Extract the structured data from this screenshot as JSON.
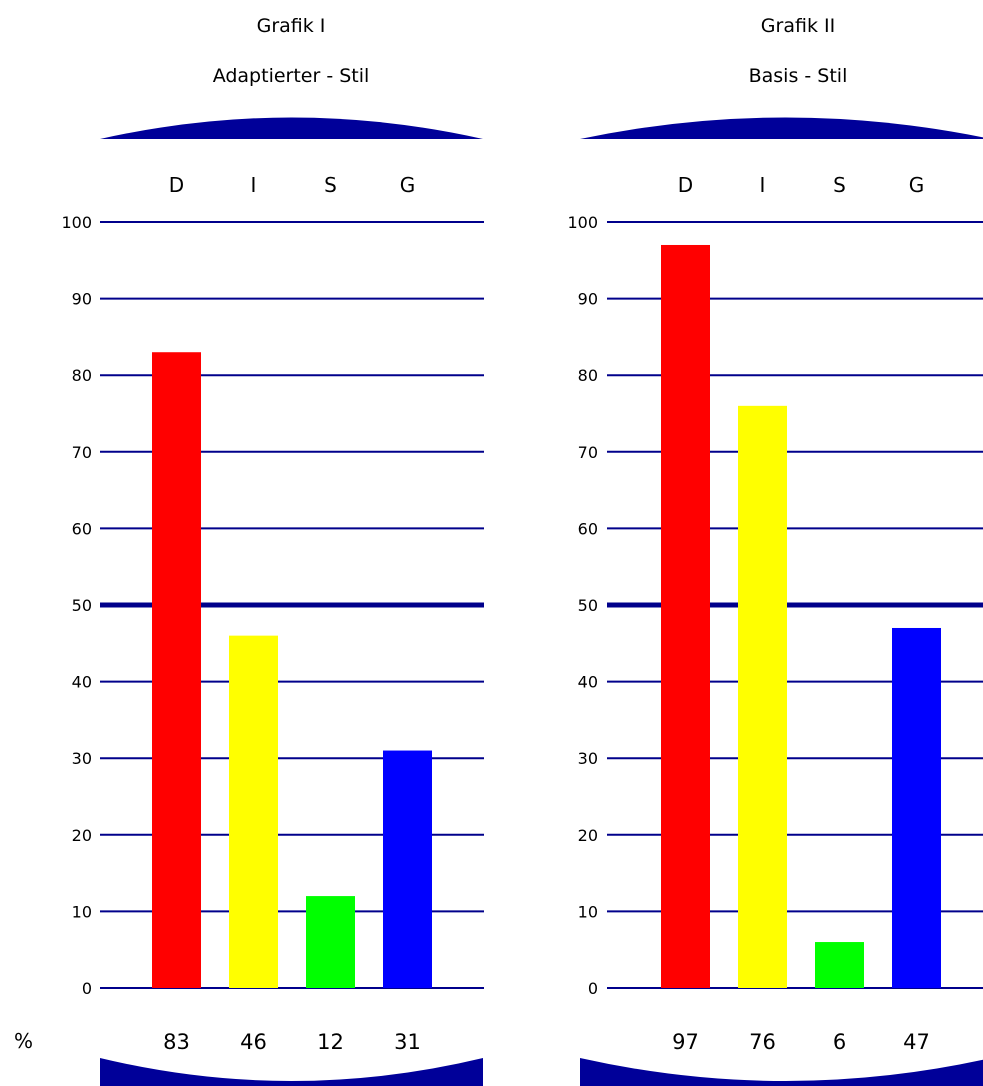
{
  "page": {
    "percent_symbol": "%"
  },
  "colors": {
    "grid": "#00008B",
    "cap": "#000099",
    "d": "#FF0000",
    "i": "#FFFF00",
    "s": "#00FF00",
    "g": "#0000FF"
  },
  "chart_data": [
    {
      "type": "bar",
      "title": "Grafik I",
      "subtitle": "Adaptierter - Stil",
      "categories": [
        "D",
        "I",
        "S",
        "G"
      ],
      "values": [
        83,
        46,
        12,
        31
      ],
      "value_labels": [
        "83",
        "46",
        "12",
        "31"
      ],
      "bar_colors": [
        "#FF0000",
        "#FFFF00",
        "#00FF00",
        "#0000FF"
      ],
      "ylim": [
        0,
        100
      ],
      "yticks": [
        0,
        10,
        20,
        30,
        40,
        50,
        60,
        70,
        80,
        90,
        100
      ],
      "emphasized_gridline": 50,
      "grid": true
    },
    {
      "type": "bar",
      "title": "Grafik II",
      "subtitle": "Basis - Stil",
      "categories": [
        "D",
        "I",
        "S",
        "G"
      ],
      "values": [
        97,
        76,
        6,
        47
      ],
      "value_labels": [
        "97",
        "76",
        "6",
        "47"
      ],
      "bar_colors": [
        "#FF0000",
        "#FFFF00",
        "#00FF00",
        "#0000FF"
      ],
      "ylim": [
        0,
        100
      ],
      "yticks": [
        0,
        10,
        20,
        30,
        40,
        50,
        60,
        70,
        80,
        90,
        100
      ],
      "emphasized_gridline": 50,
      "grid": true
    }
  ]
}
